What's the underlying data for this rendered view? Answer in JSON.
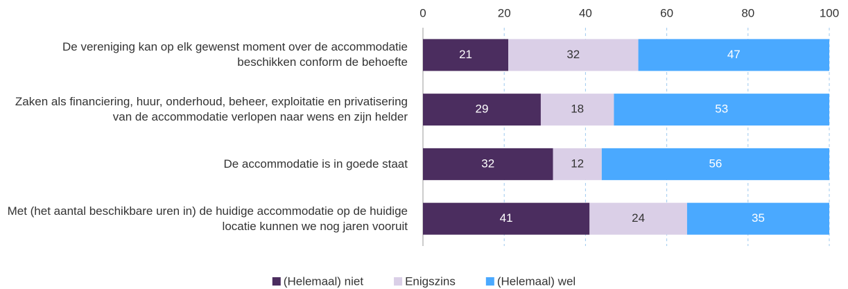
{
  "chart_data": {
    "type": "stacked_bar_horizontal",
    "categories": [
      "De vereniging kan op elk gewenst moment over de accommodatie beschikken conform de behoefte",
      "Zaken als financiering, huur, onderhoud, beheer, exploitatie en privatisering van de accommodatie verlopen naar wens en zijn helder",
      "De accommodatie is in goede staat",
      "Met (het aantal beschikbare uren in) de huidige accommodatie op de huidige locatie kunnen we nog jaren vooruit"
    ],
    "series": [
      {
        "name": "(Helemaal) niet",
        "color": "#4b2d5f",
        "values": [
          21,
          29,
          32,
          41
        ]
      },
      {
        "name": "Enigszins",
        "color": "#dacfe7",
        "values": [
          32,
          18,
          12,
          24
        ]
      },
      {
        "name": "(Helemaal) wel",
        "color": "#4aa9ff",
        "values": [
          47,
          53,
          56,
          35
        ]
      }
    ],
    "xlim": [
      0,
      100
    ],
    "xticks": [
      0,
      20,
      40,
      60,
      80,
      100
    ],
    "grid": true,
    "legend": "bottom"
  }
}
